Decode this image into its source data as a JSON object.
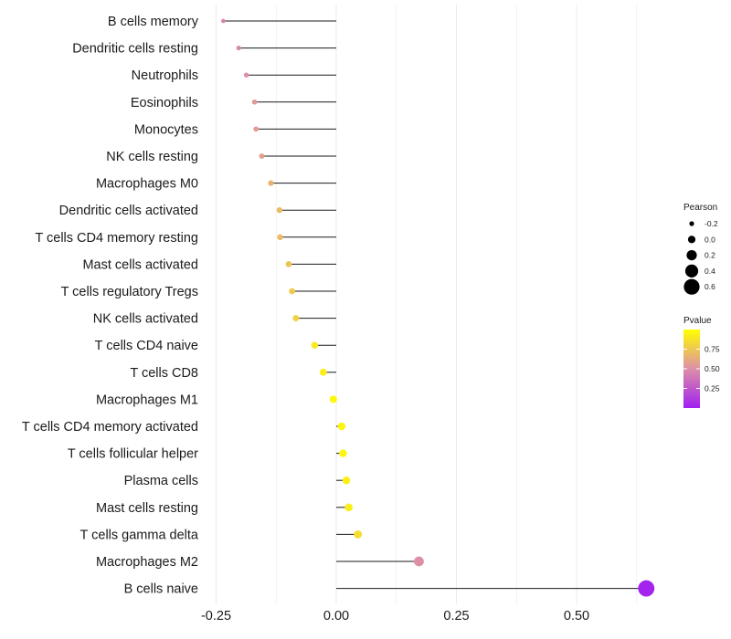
{
  "chart_data": {
    "type": "lollipop",
    "title": "",
    "xlabel": "",
    "ylabel": "",
    "xlim": [
      -0.31,
      0.66
    ],
    "xticks": [
      -0.25,
      0.0,
      0.25,
      0.5
    ],
    "xtick_labels": [
      "-0.25",
      "0.00",
      "0.25",
      "0.50"
    ],
    "grid": true,
    "categories": [
      "B cells memory",
      "Dendritic cells resting",
      "Neutrophils",
      "Eosinophils",
      "Monocytes",
      "NK cells resting",
      "Macrophages M0",
      "Dendritic cells activated",
      "T cells CD4 memory resting",
      "Mast cells activated",
      "T cells regulatory  Tregs ",
      "NK cells activated",
      "T cells CD4 naive",
      "T cells CD8",
      "Macrophages M1",
      "T cells CD4 memory activated",
      "T cells follicular helper",
      "Plasma cells",
      "Mast cells resting",
      "T cells gamma delta",
      "Macrophages M2",
      "B cells naive"
    ],
    "pearson": [
      -0.235,
      -0.203,
      -0.187,
      -0.17,
      -0.167,
      -0.155,
      -0.136,
      -0.118,
      -0.117,
      -0.099,
      -0.092,
      -0.084,
      -0.045,
      -0.027,
      -0.006,
      0.011,
      0.014,
      0.021,
      0.026,
      0.045,
      0.172,
      0.645
    ],
    "pvalue": [
      0.45,
      0.47,
      0.5,
      0.55,
      0.56,
      0.58,
      0.66,
      0.7,
      0.7,
      0.74,
      0.77,
      0.8,
      0.9,
      0.92,
      0.97,
      0.96,
      0.95,
      0.93,
      0.92,
      0.85,
      0.5,
      0.02
    ],
    "legend": {
      "size_title": "Pearson",
      "size_values": [
        -0.2,
        0.0,
        0.2,
        0.4,
        0.6
      ],
      "size_labels": [
        "-0.2",
        "0.0",
        "0.2",
        "0.4",
        "0.6"
      ],
      "color_title": "Pvalue",
      "color_range": [
        0.0,
        1.0
      ],
      "color_ticks": [
        0.25,
        0.5,
        0.75
      ],
      "color_labels": [
        "0.25",
        "0.50",
        "0.75"
      ],
      "color_low": "#a020f0",
      "color_mid": "#dd8fa6",
      "color_high": "#ffff00"
    },
    "segment_color": "#1a1a1a",
    "grid_color": "#ebebeb"
  }
}
